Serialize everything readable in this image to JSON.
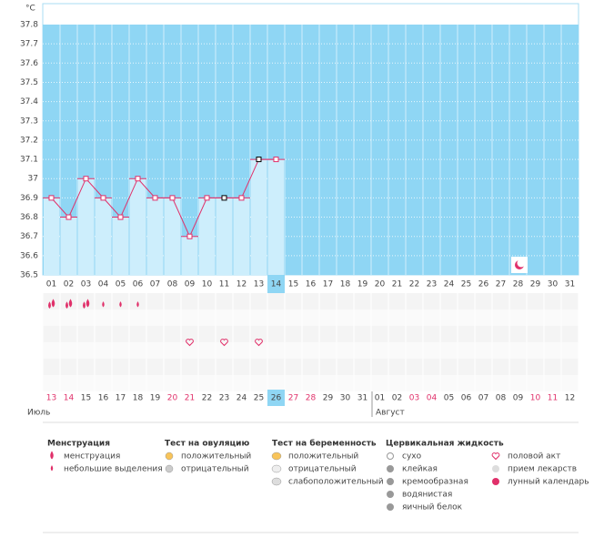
{
  "chart_data": {
    "type": "line",
    "y_label": "°C",
    "ylim": [
      36.5,
      37.8
    ],
    "yticks": [
      36.5,
      36.6,
      36.7,
      36.8,
      36.9,
      37,
      37.1,
      37.2,
      37.3,
      37.4,
      37.5,
      37.6,
      37.7,
      37.8
    ],
    "categories": [
      "01",
      "02",
      "03",
      "04",
      "05",
      "06",
      "07",
      "08",
      "09",
      "10",
      "11",
      "12",
      "13",
      "14",
      "15",
      "16",
      "17",
      "18",
      "19",
      "20",
      "21",
      "22",
      "23",
      "24",
      "25",
      "26",
      "27",
      "28",
      "29",
      "30",
      "31"
    ],
    "series": [
      {
        "name": "temperature",
        "color": "#e0306a",
        "values": [
          36.9,
          36.8,
          37.0,
          36.9,
          36.8,
          37.0,
          36.9,
          36.9,
          36.7,
          36.9,
          36.9,
          36.9,
          37.1,
          37.1,
          null,
          null,
          null,
          null,
          null,
          null,
          null,
          null,
          null,
          null,
          null,
          null,
          null,
          null,
          null,
          null,
          null
        ]
      }
    ],
    "dates": [
      "13",
      "14",
      "15",
      "16",
      "17",
      "18",
      "19",
      "20",
      "21",
      "22",
      "23",
      "24",
      "25",
      "26",
      "27",
      "28",
      "29",
      "30",
      "31",
      "01",
      "02",
      "03",
      "04",
      "05",
      "06",
      "07",
      "08",
      "09",
      "10",
      "11",
      "12"
    ],
    "months": [
      "Июль",
      "Август"
    ],
    "weekends": [
      0,
      1,
      7,
      8,
      14,
      15,
      21,
      22,
      28,
      29
    ],
    "weekend_color": "#e0306a",
    "highlighted_index": 13,
    "grid": true
  },
  "legend": [
    {
      "title": "Менструация",
      "items": [
        "менструация",
        "небольшие выделения"
      ]
    },
    {
      "title": "Тест на овуляцию",
      "items": [
        "положительный",
        "отрицательный"
      ]
    },
    {
      "title": "Тест на беременность",
      "items": [
        "положительный",
        "отрицательный",
        "слабоположительный"
      ]
    },
    {
      "title": "Цервикальная жидкость",
      "items": [
        "сухо",
        "клейкая",
        "кремообразная",
        "водянистая",
        "яичный белок"
      ]
    },
    {
      "title": "",
      "items": [
        "половой акт",
        "прием лекарств",
        "лунный календарь"
      ]
    }
  ]
}
